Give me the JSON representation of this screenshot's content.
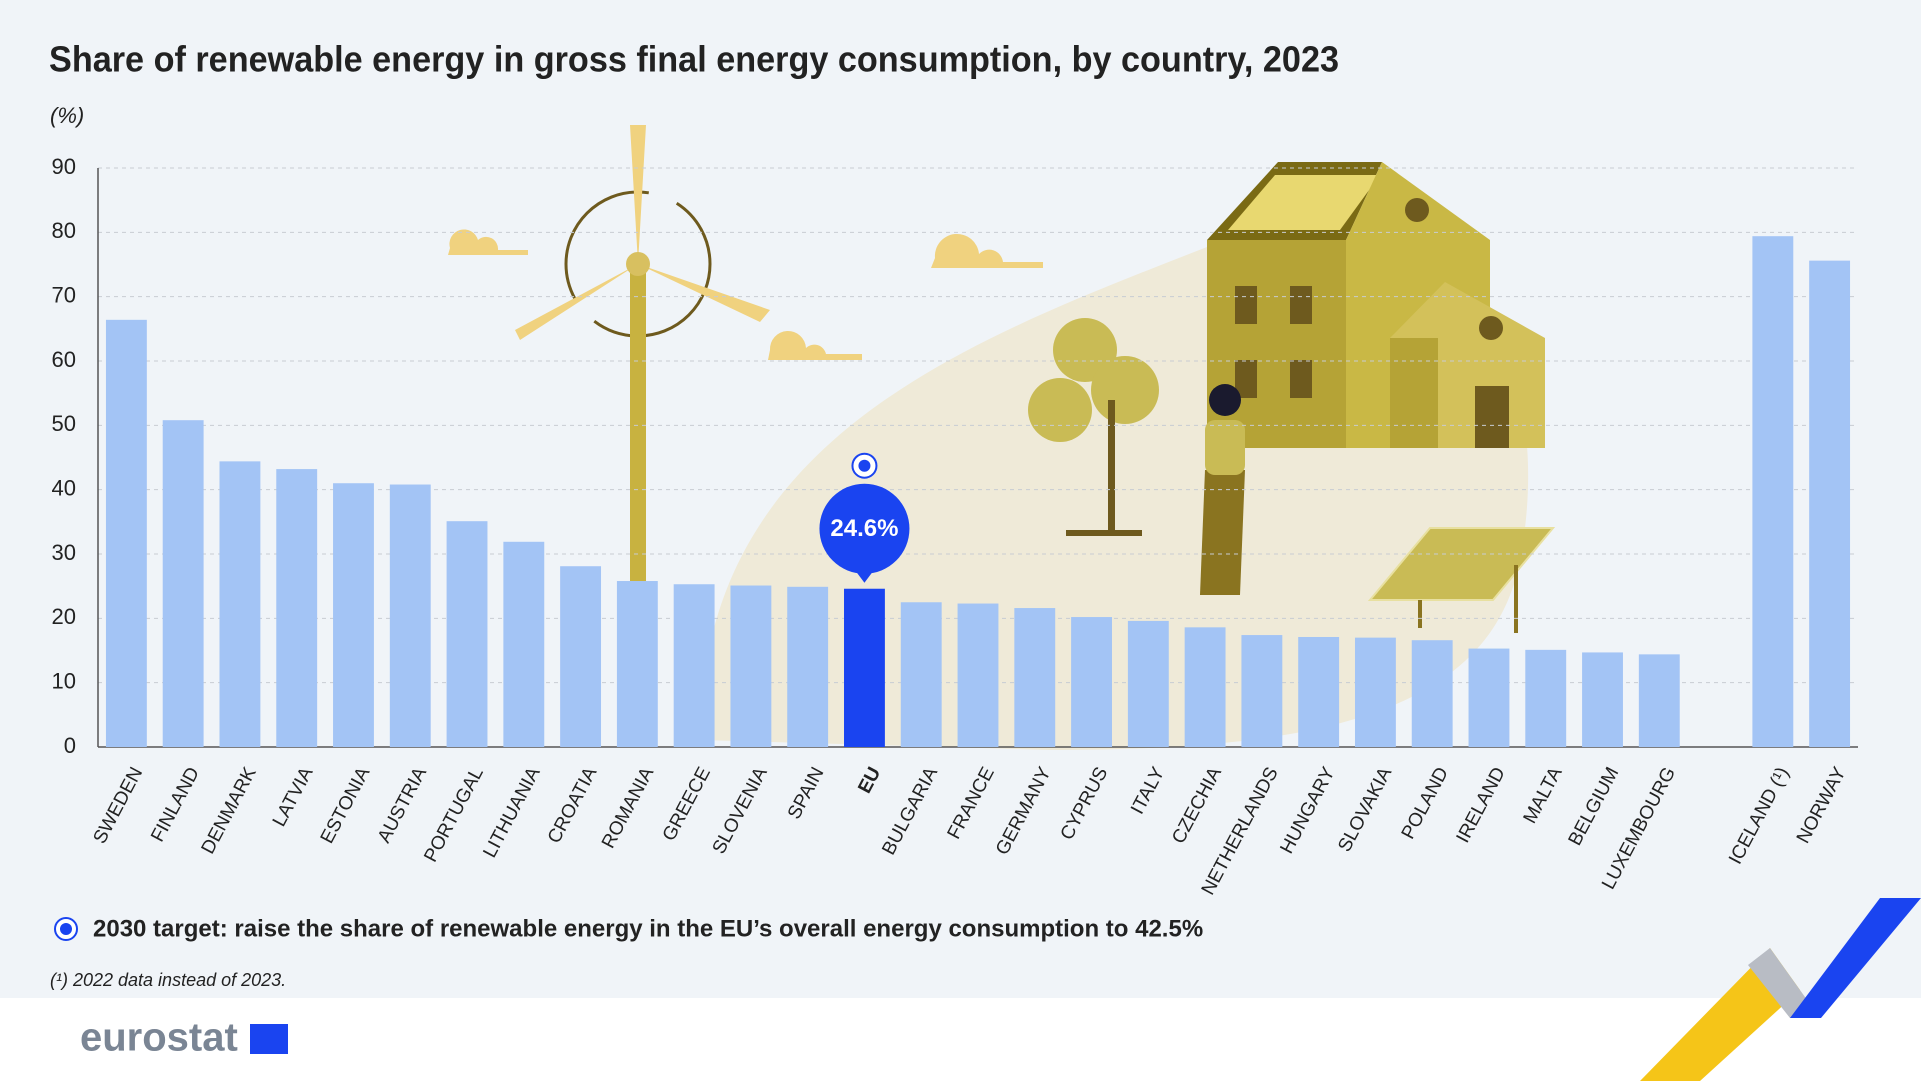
{
  "chart_data": {
    "type": "bar",
    "title": "Share of renewable energy in gross final energy consumption, by country, 2023",
    "y_label": "(%)",
    "categories": [
      "SWEDEN",
      "FINLAND",
      "DENMARK",
      "LATVIA",
      "ESTONIA",
      "AUSTRIA",
      "PORTUGAL",
      "LITHUANIA",
      "CROATIA",
      "ROMANIA",
      "GREECE",
      "SLOVENIA",
      "SPAIN",
      "EU",
      "BULGARIA",
      "FRANCE",
      "GERMANY",
      "CYPRUS",
      "ITALY",
      "CZECHIA",
      "NETHERLANDS",
      "HUNGARY",
      "SLOVAKIA",
      "POLAND",
      "IRELAND",
      "MALTA",
      "BELGIUM",
      "LUXEMBOURG",
      null,
      "ICELAND (¹)",
      "NORWAY"
    ],
    "values": [
      66.4,
      50.8,
      44.4,
      43.2,
      41.0,
      40.8,
      35.1,
      31.9,
      28.1,
      25.8,
      25.3,
      25.1,
      24.9,
      24.6,
      22.5,
      22.3,
      21.6,
      20.2,
      19.6,
      18.6,
      17.4,
      17.1,
      17.0,
      16.6,
      15.3,
      15.1,
      14.7,
      14.4,
      null,
      79.4,
      75.6
    ],
    "value_labels": [
      null,
      null,
      null,
      null,
      null,
      null,
      null,
      null,
      null,
      null,
      null,
      null,
      null,
      "24.6%",
      null,
      null,
      null,
      null,
      null,
      null,
      null,
      null,
      null,
      null,
      null,
      null,
      null,
      null,
      null,
      null,
      null
    ],
    "colors": [
      "#a3c4f5",
      "#a3c4f5",
      "#a3c4f5",
      "#a3c4f5",
      "#a3c4f5",
      "#a3c4f5",
      "#a3c4f5",
      "#a3c4f5",
      "#a3c4f5",
      "#a3c4f5",
      "#a3c4f5",
      "#a3c4f5",
      "#a3c4f5",
      "#1a44f0",
      "#a3c4f5",
      "#a3c4f5",
      "#a3c4f5",
      "#a3c4f5",
      "#a3c4f5",
      "#a3c4f5",
      "#a3c4f5",
      "#a3c4f5",
      "#a3c4f5",
      "#a3c4f5",
      "#a3c4f5",
      "#a3c4f5",
      "#a3c4f5",
      "#a3c4f5",
      null,
      "#a3c4f5",
      "#a3c4f5"
    ],
    "ylim": [
      0,
      90
    ],
    "yticks": [
      0,
      10,
      20,
      30,
      40,
      50,
      60,
      70,
      80,
      90
    ],
    "grid": true,
    "target_note": "2030 target: raise the share of renewable energy in the EU’s overall energy consumption to 42.5%",
    "footnote": "(¹) 2022 data instead of 2023.",
    "source_logo": "eurostat"
  }
}
